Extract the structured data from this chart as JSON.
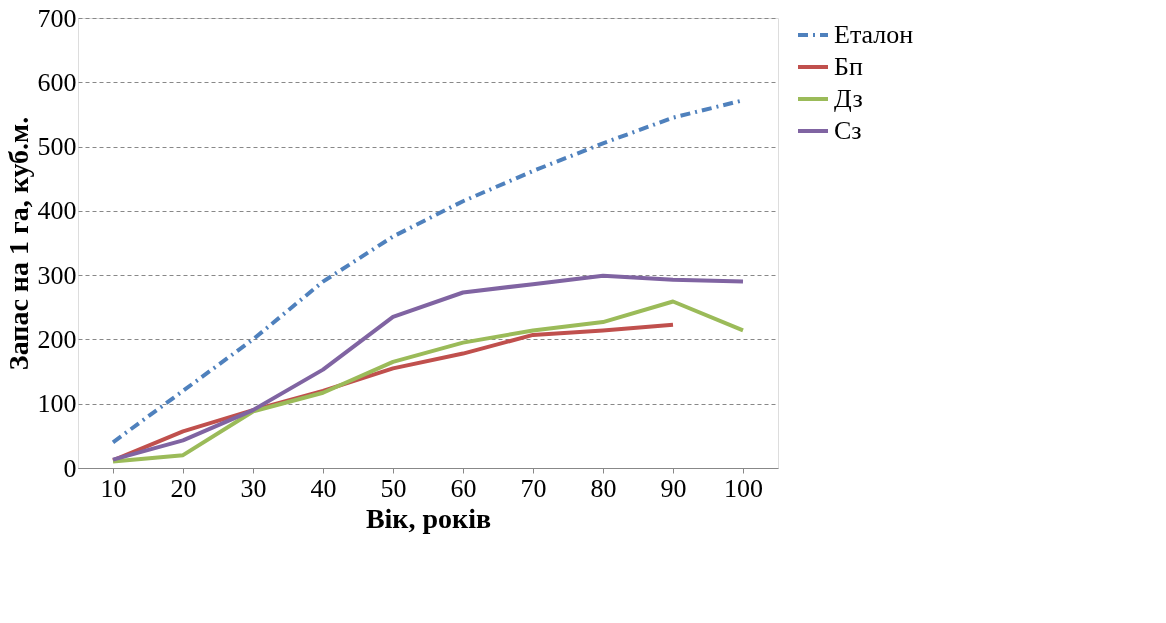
{
  "chart_data": {
    "type": "line",
    "xlabel": "Вік, років",
    "ylabel": "Запас на 1 га, куб.м.",
    "categories": [
      "10",
      "20",
      "30",
      "40",
      "50",
      "60",
      "70",
      "80",
      "90",
      "100"
    ],
    "series": [
      {
        "name": "Еталон",
        "color": "#4f81bd",
        "line_style": "dashed",
        "values": [
          40,
          120,
          200,
          290,
          360,
          415,
          462,
          505,
          545,
          572
        ]
      },
      {
        "name": "Бп",
        "color": "#c0504d",
        "values": [
          12,
          57,
          90,
          120,
          155,
          178,
          207,
          214,
          223,
          null
        ]
      },
      {
        "name": "Дз",
        "color": "#9bbb59",
        "values": [
          10,
          20,
          88,
          117,
          165,
          195,
          214,
          227,
          259,
          214
        ]
      },
      {
        "name": "Сз",
        "color": "#8064a2",
        "values": [
          13,
          43,
          90,
          153,
          235,
          273,
          286,
          299,
          293,
          290
        ]
      }
    ],
    "ylim": [
      0,
      700
    ],
    "yticks": [
      0,
      100,
      200,
      300,
      400,
      500,
      600,
      700
    ],
    "grid": "y",
    "legend": "right",
    "line_style": "solid",
    "marker": "none"
  }
}
